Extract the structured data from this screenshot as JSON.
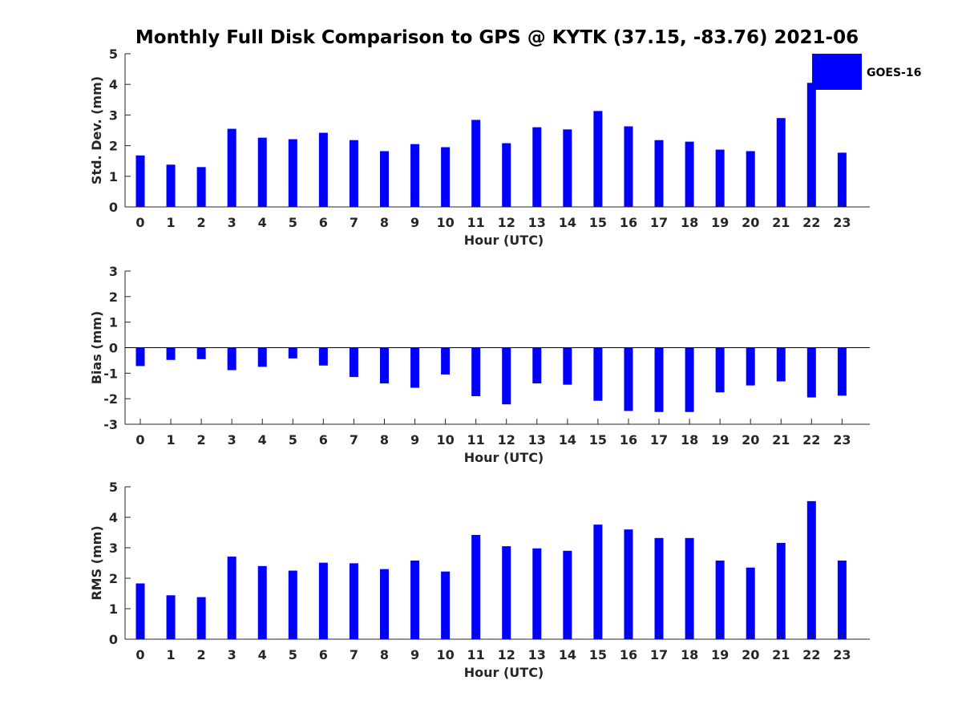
{
  "title": "Monthly Full Disk Comparison to GPS @ KYTK (37.15, -83.76) 2021-06",
  "colors": {
    "bar": "#0000ff",
    "axis": "#262626",
    "text": "#262626"
  },
  "legend": {
    "label": "GOES-16",
    "placement": "top-right"
  },
  "chart_data": [
    {
      "type": "bar",
      "ylabel": "Std. Dev. (mm)",
      "xlabel": "Hour (UTC)",
      "ylim": [
        0,
        5
      ],
      "yticks": [
        0,
        1,
        2,
        3,
        4,
        5
      ],
      "categories": [
        "0",
        "1",
        "2",
        "3",
        "4",
        "5",
        "6",
        "7",
        "8",
        "9",
        "10",
        "11",
        "12",
        "13",
        "14",
        "15",
        "16",
        "17",
        "18",
        "19",
        "20",
        "21",
        "22",
        "23"
      ],
      "series": [
        {
          "name": "GOES-16",
          "values": [
            1.68,
            1.38,
            1.3,
            2.55,
            2.26,
            2.21,
            2.42,
            2.18,
            1.82,
            2.05,
            1.95,
            2.84,
            2.08,
            2.6,
            2.53,
            3.13,
            2.63,
            2.18,
            2.13,
            1.87,
            1.82,
            2.9,
            4.05,
            1.77
          ]
        }
      ]
    },
    {
      "type": "bar",
      "ylabel": "Bias (mm)",
      "xlabel": "Hour (UTC)",
      "ylim": [
        -3,
        3
      ],
      "yticks": [
        -3,
        -2,
        -1,
        0,
        1,
        2,
        3
      ],
      "categories": [
        "0",
        "1",
        "2",
        "3",
        "4",
        "5",
        "6",
        "7",
        "8",
        "9",
        "10",
        "11",
        "12",
        "13",
        "14",
        "15",
        "16",
        "17",
        "18",
        "19",
        "20",
        "21",
        "22",
        "23"
      ],
      "series": [
        {
          "name": "GOES-16",
          "values": [
            -0.72,
            -0.48,
            -0.45,
            -0.88,
            -0.75,
            -0.42,
            -0.7,
            -1.15,
            -1.4,
            -1.57,
            -1.05,
            -1.9,
            -2.22,
            -1.4,
            -1.45,
            -2.08,
            -2.48,
            -2.52,
            -2.52,
            -1.75,
            -1.48,
            -1.32,
            -1.95,
            -1.88
          ]
        }
      ]
    },
    {
      "type": "bar",
      "ylabel": "RMS (mm)",
      "xlabel": "Hour (UTC)",
      "ylim": [
        0,
        5
      ],
      "yticks": [
        0,
        1,
        2,
        3,
        4,
        5
      ],
      "categories": [
        "0",
        "1",
        "2",
        "3",
        "4",
        "5",
        "6",
        "7",
        "8",
        "9",
        "10",
        "11",
        "12",
        "13",
        "14",
        "15",
        "16",
        "17",
        "18",
        "19",
        "20",
        "21",
        "22",
        "23"
      ],
      "series": [
        {
          "name": "GOES-16",
          "values": [
            1.83,
            1.44,
            1.38,
            2.71,
            2.4,
            2.25,
            2.51,
            2.49,
            2.3,
            2.58,
            2.22,
            3.42,
            3.05,
            2.98,
            2.9,
            3.76,
            3.6,
            3.32,
            3.32,
            2.58,
            2.35,
            3.16,
            4.53,
            2.58
          ]
        }
      ]
    }
  ]
}
